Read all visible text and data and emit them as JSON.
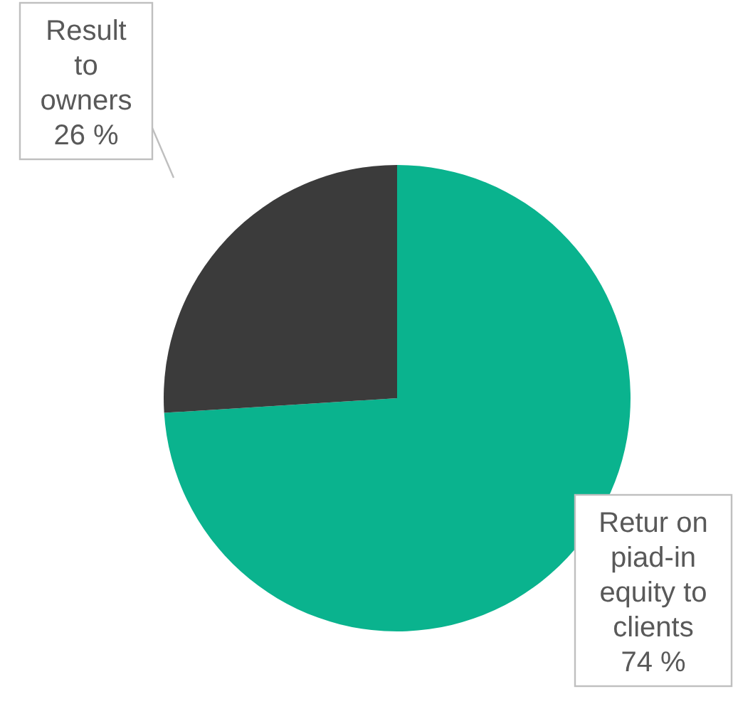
{
  "chart_data": {
    "type": "pie",
    "categories": [
      "Retur on piad-in equity to clients",
      "Result to owners"
    ],
    "values": [
      74,
      26
    ],
    "colors": [
      "#0ab38e",
      "#3b3b3b"
    ],
    "value_labels": [
      "74 %",
      "26 %"
    ]
  }
}
